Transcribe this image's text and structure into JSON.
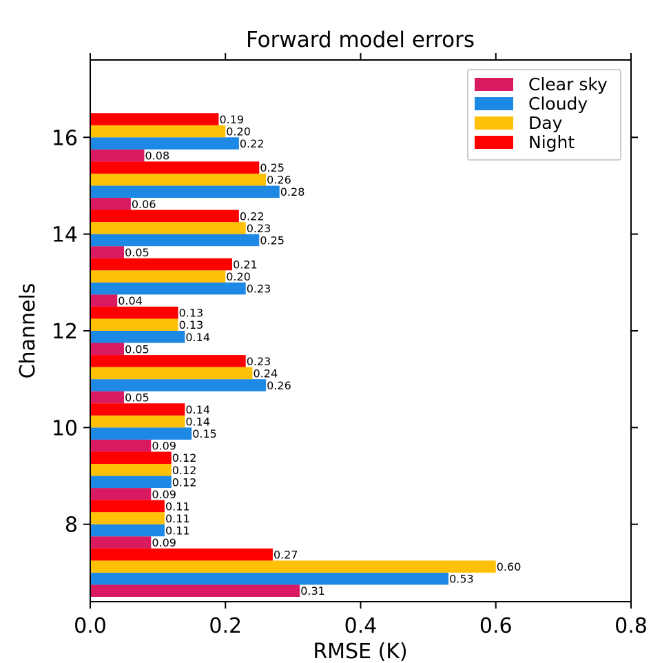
{
  "chart_data": {
    "type": "bar",
    "orientation": "horizontal",
    "title": "Forward model errors",
    "xlabel": "RMSE (K)",
    "ylabel": "Channels",
    "xlim": [
      0.0,
      0.8
    ],
    "ylim": [
      6.4,
      17.6
    ],
    "x_ticks": [
      "0.0",
      "0.2",
      "0.4",
      "0.6",
      "0.8"
    ],
    "y_ticks": [
      "8",
      "10",
      "12",
      "14",
      "16"
    ],
    "categories": [
      7,
      8,
      9,
      10,
      11,
      12,
      13,
      14,
      15,
      16
    ],
    "series": [
      {
        "name": "Clear sky",
        "color": "#d81b60",
        "values": [
          0.31,
          0.09,
          0.09,
          0.09,
          0.05,
          0.05,
          0.04,
          0.05,
          0.06,
          0.08
        ]
      },
      {
        "name": "Cloudy",
        "color": "#1e88e5",
        "values": [
          0.53,
          0.11,
          0.12,
          0.15,
          0.26,
          0.14,
          0.23,
          0.25,
          0.28,
          0.22
        ]
      },
      {
        "name": "Day",
        "color": "#ffc107",
        "values": [
          0.6,
          0.11,
          0.12,
          0.14,
          0.24,
          0.13,
          0.2,
          0.23,
          0.26,
          0.2
        ]
      },
      {
        "name": "Night",
        "color": "#ff0000",
        "values": [
          0.27,
          0.11,
          0.12,
          0.14,
          0.23,
          0.13,
          0.21,
          0.22,
          0.25,
          0.19
        ]
      }
    ],
    "legend_position": "top-right",
    "grid": false
  }
}
